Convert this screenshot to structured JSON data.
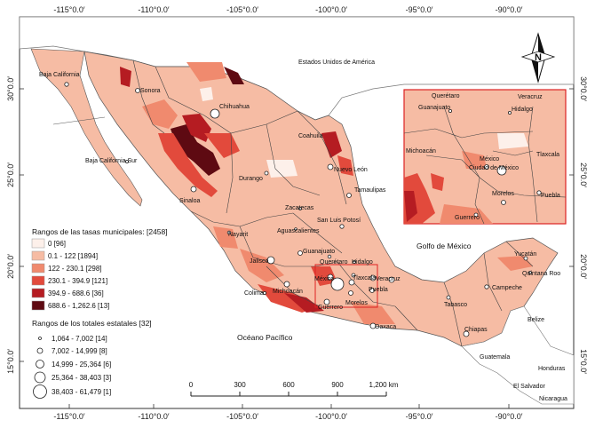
{
  "map": {
    "axes": {
      "top_ticks": [
        "-115°0.0′",
        "-110°0.0′",
        "-105°0.0′",
        "-100°0.0′",
        "-95°0.0′",
        "-90°0.0′"
      ],
      "bottom_ticks": [
        "-115°0.0′",
        "-110°0.0′",
        "-105°0.0′",
        "-100°0.0′",
        "-95°0.0′",
        "-90°0.0′"
      ],
      "left_ticks": [
        "30°0.0′",
        "25°0.0′",
        "20°0.0′",
        "15°0.0′"
      ],
      "right_ticks": [
        "30°0.0′",
        "25°0.0′",
        "20°0.0′",
        "15°0.0′"
      ]
    },
    "north_arrow": "N",
    "legend": {
      "rates_title": "Rangos de las tasas municipales: [2458]",
      "rates": [
        {
          "label": "0 [96]",
          "color": "#fdf0ea"
        },
        {
          "label": "0.1 - 122 [1894]",
          "color": "#f6bca4"
        },
        {
          "label": "122 - 230.1 [298]",
          "color": "#f08a6e"
        },
        {
          "label": "230.1 - 394.9 [121]",
          "color": "#e24a3c"
        },
        {
          "label": "394.9 - 688.6 [36]",
          "color": "#b51c22"
        },
        {
          "label": "688.6 - 1,262.6 [13]",
          "color": "#5e0a12"
        }
      ],
      "totals_title": "Rangos de los totales estatales [32]",
      "totals": [
        {
          "label": "1,064 - 7,002 [14]"
        },
        {
          "label": "7,002 - 14,999 [8]"
        },
        {
          "label": "14,999 - 25,364 [6]"
        },
        {
          "label": "25,364 - 38,403 [3]"
        },
        {
          "label": "38,403 - 61,479 [1]"
        }
      ]
    },
    "scale_bar": {
      "ticks": [
        "0",
        "300",
        "600",
        "900",
        "1,200 km"
      ]
    },
    "places": {
      "usa": "Estados Unidos de América",
      "gulf": "Golfo de México",
      "pacific": "Océano Pacífico",
      "guatemala": "Guatemala",
      "belize": "Belize",
      "honduras": "Honduras",
      "el_salvador": "El Salvador",
      "nicaragua": "Nicaragua",
      "baja_california": "Baja California",
      "baja_california_sur": "Baja California Sur",
      "sonora": "Sonora",
      "chihuahua": "Chihuahua",
      "coahuila": "Coahuila",
      "nuevo_leon": "Nuevo León",
      "tamaulipas": "Tamaulipas",
      "sinaloa": "Sinaloa",
      "durango": "Durango",
      "zacatecas": "Zacatecas",
      "san_luis_potosi": "San Luis Potosí",
      "nayarit": "Nayarit",
      "aguascalientes": "Aguascalientes",
      "jalisco": "Jalisco",
      "guanajuato": "Guanajuato",
      "queretaro": "Querétaro",
      "hidalgo": "Hidalgo",
      "colima": "Colima",
      "michoacan": "Michoacán",
      "mexico": "México",
      "tlaxcala": "Tlaxcala",
      "puebla": "Puebla",
      "veracruz": "Veracruz",
      "morelos": "Morelos",
      "guerrero": "Guerrero",
      "oaxaca": "Oaxaca",
      "chiapas": "Chiapas",
      "tabasco": "Tabasco",
      "campeche": "Campeche",
      "yucatan": "Yucatán",
      "quintana_roo": "Quintana Roo"
    },
    "inset": {
      "queretaro": "Querétaro",
      "guanajuato": "Guanajuato",
      "veracruz": "Veracruz",
      "hidalgo": "Hidalgo",
      "michoacan": "Michoacán",
      "mexico": "México",
      "cdmx": "Ciudad de México",
      "tlaxcala": "Tlaxcala",
      "morelos": "Morelos",
      "puebla": "Puebla",
      "guerrero": "Guerrero"
    }
  }
}
